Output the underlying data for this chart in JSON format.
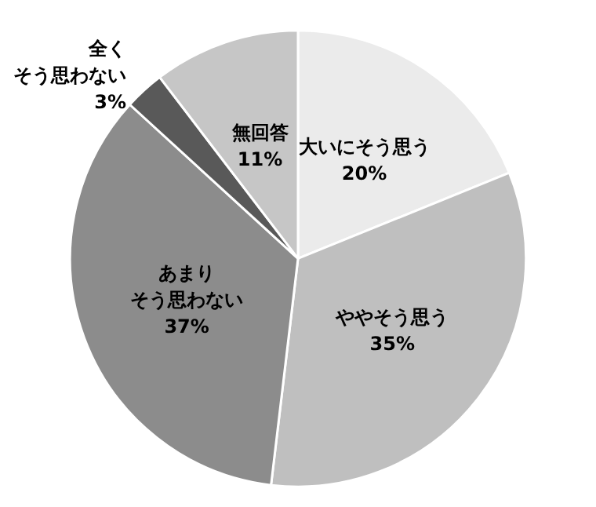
{
  "chart_data": {
    "type": "pie",
    "categories": [
      "大いにそう思う",
      "ややそう思う",
      "あまりそう思わない",
      "全くそう思わない",
      "無回答"
    ],
    "values": [
      20,
      35,
      37,
      3,
      11
    ],
    "value_labels": [
      "20%",
      "35%",
      "37%",
      "3%",
      "11%"
    ],
    "colors": [
      "#ebebeb",
      "#bfbfbf",
      "#8c8c8c",
      "#595959",
      "#c6c6c6"
    ]
  }
}
